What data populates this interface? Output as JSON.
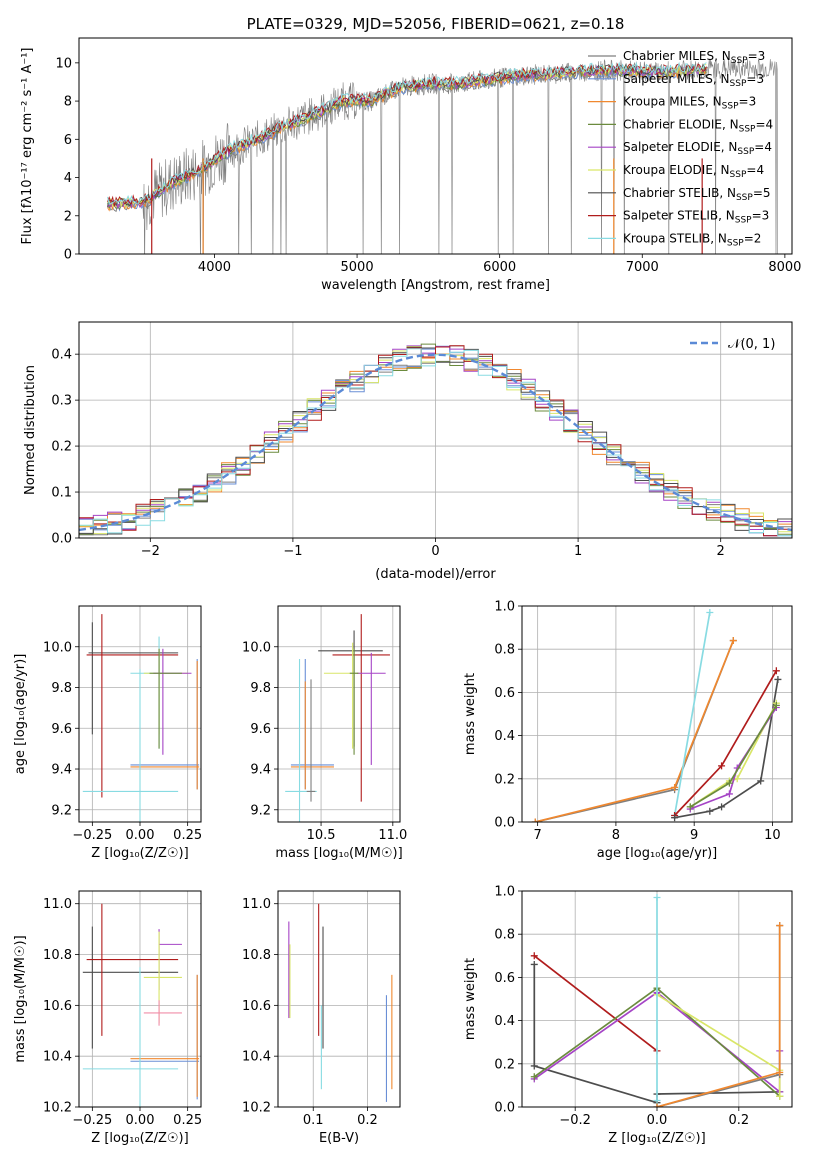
{
  "colors": {
    "chabrier_miles": "#7f7f7f",
    "salpeter_miles": "#6a8fd6",
    "kroupa_miles": "#f0882f",
    "chabrier_elodie": "#6b8b3e",
    "salpeter_elodie": "#a544c6",
    "kroupa_elodie": "#d9e668",
    "chabrier_stelib": "#4d4d4d",
    "salpeter_stelib": "#b01c1c",
    "kroupa_stelib": "#88dbe2",
    "normal": "#5b8ad6"
  },
  "chart_data": [
    {
      "id": "spectrum",
      "type": "line",
      "title": "PLATE=0329, MJD=52056, FIBERID=0621, z=0.18",
      "xlabel": "wavelength [Angstrom, rest frame]",
      "ylabel": "Flux [fλ10⁻¹⁷ erg cm⁻² s⁻¹ A⁻¹]",
      "xlim": [
        3050,
        8050
      ],
      "ylim": [
        0,
        11.3
      ],
      "xticks": [
        "4000",
        "5000",
        "6000",
        "7000",
        "8000"
      ],
      "yticks": [
        "0",
        "2",
        "4",
        "6",
        "8",
        "10"
      ],
      "grid": false,
      "legend_position": "top-right",
      "model_knots_x": [
        3250,
        3500,
        3700,
        3900,
        4100,
        4300,
        4500,
        4700,
        4900,
        5100,
        5300,
        5500,
        5700,
        5900,
        6100,
        6300,
        6500,
        6700,
        6900,
        7100,
        7300,
        7500
      ],
      "model_knots_y": [
        2.6,
        2.7,
        3.7,
        4.4,
        5.4,
        6.0,
        6.7,
        7.3,
        8.0,
        8.0,
        8.7,
        8.9,
        8.9,
        9.1,
        9.3,
        9.4,
        9.5,
        9.6,
        9.6,
        9.5,
        9.6,
        9.7
      ],
      "series": [
        {
          "name": "Chabrier MILES, N",
          "sub": "SSP",
          "suffix": "=3"
        },
        {
          "name": "Salpeter MILES, N",
          "sub": "SSP",
          "suffix": "=3"
        },
        {
          "name": "Kroupa MILES, N",
          "sub": "SSP",
          "suffix": "=3"
        },
        {
          "name": "Chabrier ELODIE, N",
          "sub": "SSP",
          "suffix": "=4"
        },
        {
          "name": "Salpeter ELODIE, N",
          "sub": "SSP",
          "suffix": "=4"
        },
        {
          "name": "Kroupa ELODIE, N",
          "sub": "SSP",
          "suffix": "=4"
        },
        {
          "name": "Chabrier STELIB, N",
          "sub": "SSP",
          "suffix": "=5"
        },
        {
          "name": "Salpeter STELIB, N",
          "sub": "SSP",
          "suffix": "=3"
        },
        {
          "name": "Kroupa STELIB, N",
          "sub": "SSP",
          "suffix": "=2"
        }
      ]
    },
    {
      "id": "residuals",
      "type": "line",
      "xlabel": "(data-model)/error",
      "ylabel": "Normed distribution",
      "xlim": [
        -2.5,
        2.5
      ],
      "ylim": [
        0,
        0.47
      ],
      "xticks": [
        "−2",
        "−1",
        "0",
        "1",
        "2"
      ],
      "yticks": [
        "0.0",
        "0.1",
        "0.2",
        "0.3",
        "0.4"
      ],
      "grid": true,
      "legend": "𝒩(0, 1)",
      "legend_position": "top-right",
      "bin_width": 0.1
    },
    {
      "id": "age_vs_Z",
      "type": "scatter",
      "xlabel": "Z [log₁₀(Z/Z☉)]",
      "ylabel": "age  [log₁₀(age/yr)]",
      "xlim": [
        -0.32,
        0.32
      ],
      "ylim": [
        9.14,
        10.2
      ],
      "xticks": [
        "−0.25",
        "0.00",
        "0.25"
      ],
      "yticks": [
        "9.2",
        "9.4",
        "9.6",
        "9.8",
        "10.0"
      ],
      "grid": true
    },
    {
      "id": "age_vs_mass",
      "type": "scatter",
      "xlabel": "mass [log₁₀(M/M☉)]",
      "xlim": [
        10.2,
        11.05
      ],
      "ylim": [
        9.14,
        10.2
      ],
      "xticks": [
        "10.5",
        "11.0"
      ],
      "yticks": [
        "9.2",
        "9.4",
        "9.6",
        "9.8",
        "10.0"
      ],
      "grid": true
    },
    {
      "id": "weight_vs_age",
      "type": "line",
      "xlabel": "age  [log₁₀(age/yr)]",
      "ylabel": "mass weight",
      "xlim": [
        6.8,
        10.25
      ],
      "ylim": [
        0,
        1.0
      ],
      "xticks": [
        "7",
        "8",
        "9",
        "10"
      ],
      "yticks": [
        "0.0",
        "0.2",
        "0.4",
        "0.6",
        "0.8",
        "1.0"
      ],
      "grid": true
    },
    {
      "id": "mass_vs_Z",
      "type": "scatter",
      "xlabel": "Z [log₁₀(Z/Z☉)]",
      "ylabel": "mass [log₁₀(M/M☉)]",
      "xlim": [
        -0.32,
        0.32
      ],
      "ylim": [
        10.2,
        11.05
      ],
      "xticks": [
        "−0.25",
        "0.00",
        "0.25"
      ],
      "yticks": [
        "10.2",
        "10.4",
        "10.6",
        "10.8",
        "11.0"
      ],
      "grid": true
    },
    {
      "id": "mass_vs_ebv",
      "type": "scatter",
      "xlabel": "E(B-V)",
      "xlim": [
        0.035,
        0.26
      ],
      "ylim": [
        10.2,
        11.05
      ],
      "xticks": [
        "0.1",
        "0.2"
      ],
      "yticks": [
        "10.2",
        "10.4",
        "10.6",
        "10.8",
        "11.0"
      ],
      "grid": true
    },
    {
      "id": "weight_vs_Z",
      "type": "line",
      "xlabel": "Z [log₁₀(Z/Z☉)]",
      "ylabel": "mass weight",
      "xlim": [
        -0.33,
        0.33
      ],
      "ylim": [
        0,
        1.0
      ],
      "xticks": [
        "−0.2",
        "0.0",
        "0.2"
      ],
      "yticks": [
        "0.0",
        "0.2",
        "0.4",
        "0.6",
        "0.8",
        "1.0"
      ],
      "grid": true
    }
  ]
}
